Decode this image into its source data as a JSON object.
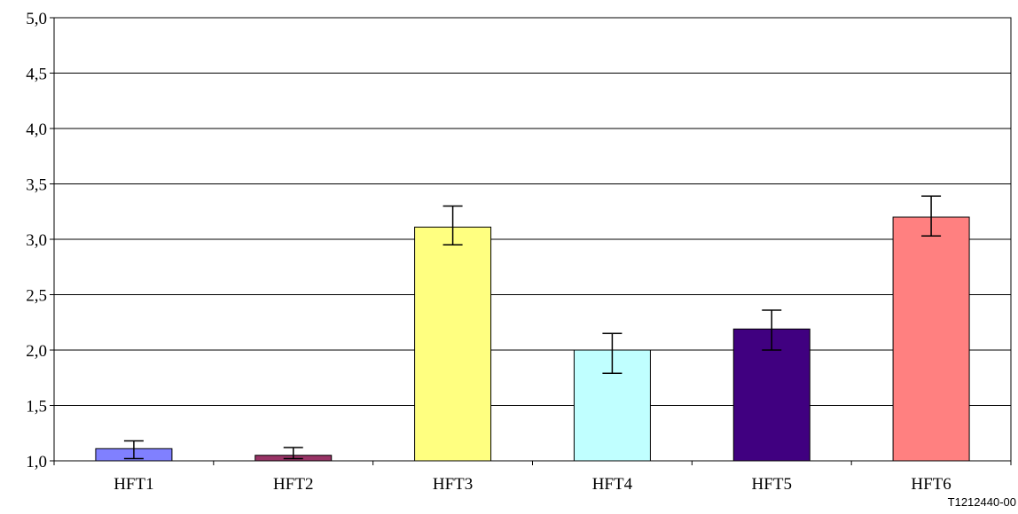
{
  "chart_data": {
    "type": "bar",
    "categories": [
      "HFT1",
      "HFT2",
      "HFT3",
      "HFT4",
      "HFT5",
      "HFT6"
    ],
    "values": [
      1.11,
      1.05,
      3.11,
      2.0,
      2.19,
      3.2
    ],
    "error_low": [
      1.02,
      1.02,
      2.95,
      1.79,
      2.0,
      3.03
    ],
    "error_high": [
      1.18,
      1.12,
      3.3,
      2.15,
      2.36,
      3.39
    ],
    "colors": [
      "#8080FF",
      "#993366",
      "#FFFF80",
      "#C0FFFF",
      "#400080",
      "#FF8080"
    ],
    "ylim": [
      1.0,
      5.0
    ],
    "yticks": [
      "1,0",
      "1,5",
      "2,0",
      "2,5",
      "3,0",
      "3,5",
      "4,0",
      "4,5",
      "5,0"
    ],
    "grid": true,
    "title": "",
    "xlabel": "",
    "ylabel": ""
  },
  "figure_id": "T1212440-00"
}
